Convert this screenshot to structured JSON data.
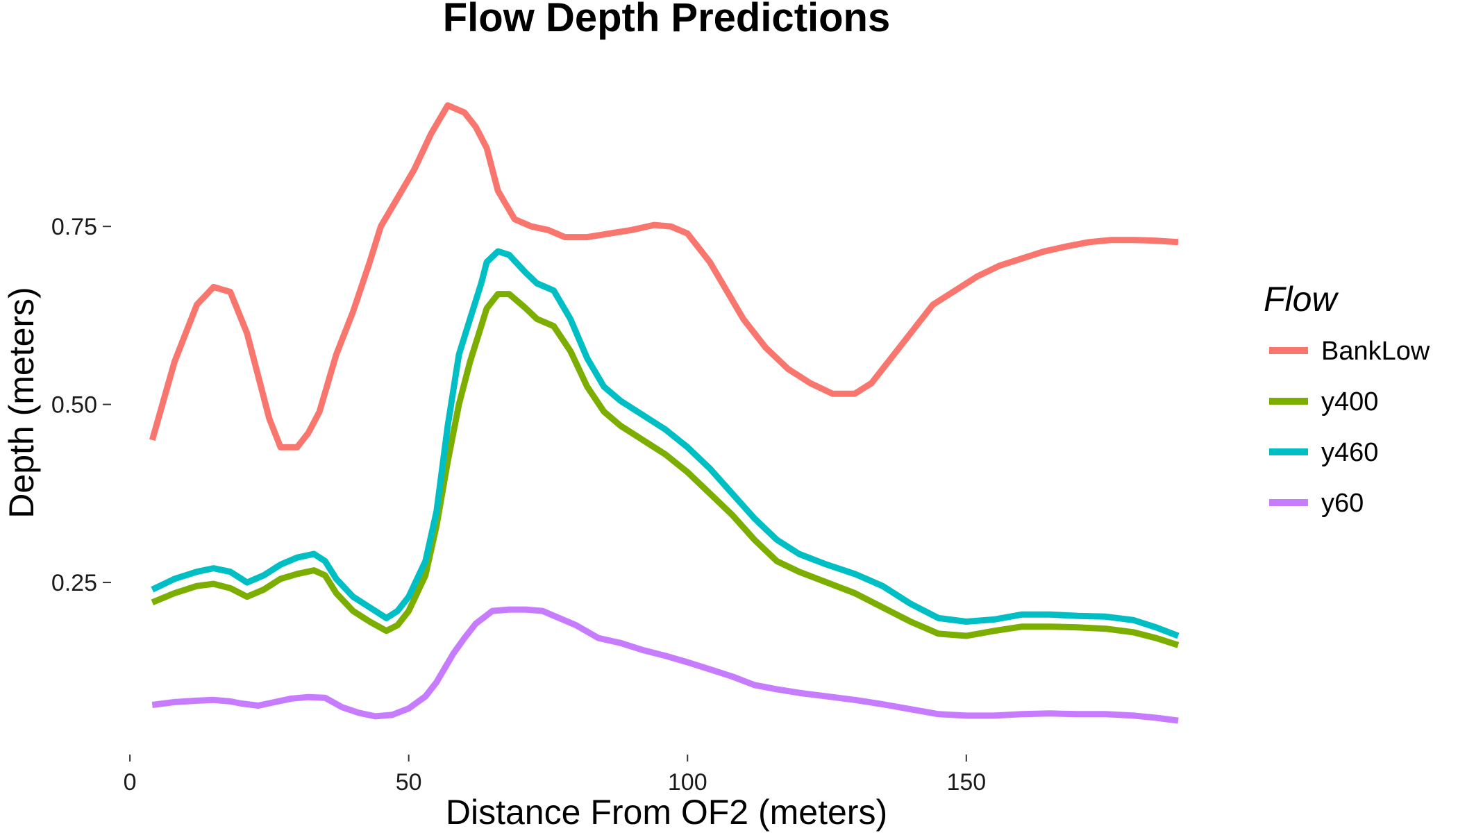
{
  "chart_data": {
    "type": "line",
    "title": "Flow Depth Predictions",
    "xlabel": "Distance From OF2 (meters)",
    "ylabel": "Depth (meters)",
    "xlim": [
      -4,
      188
    ],
    "ylim": [
      0.02,
      0.99
    ],
    "x_ticks": [
      0,
      50,
      100,
      150
    ],
    "x_tick_labels": [
      "0",
      "50",
      "100",
      "150"
    ],
    "y_ticks": [
      0.25,
      0.5,
      0.75
    ],
    "y_tick_labels": [
      "0.25",
      "0.50",
      "0.75"
    ],
    "grid": false,
    "legend": {
      "title": "Flow",
      "position": "right"
    },
    "series": [
      {
        "name": "BankLow",
        "color": "#F8766D",
        "x": [
          4,
          8,
          12,
          15,
          18,
          21,
          25,
          27,
          30,
          32,
          34,
          37,
          40,
          43,
          45,
          48,
          51,
          54,
          57,
          60,
          62,
          64,
          66,
          69,
          72,
          75,
          78,
          82,
          86,
          90,
          94,
          97,
          100,
          104,
          107,
          110,
          114,
          118,
          122,
          126,
          130,
          133,
          136,
          140,
          144,
          148,
          152,
          156,
          160,
          164,
          168,
          172,
          176,
          180,
          184,
          188
        ],
        "y": [
          0.45,
          0.56,
          0.64,
          0.665,
          0.658,
          0.6,
          0.48,
          0.44,
          0.44,
          0.46,
          0.49,
          0.57,
          0.63,
          0.7,
          0.75,
          0.79,
          0.83,
          0.88,
          0.92,
          0.91,
          0.89,
          0.86,
          0.8,
          0.76,
          0.75,
          0.745,
          0.735,
          0.735,
          0.74,
          0.745,
          0.752,
          0.75,
          0.74,
          0.7,
          0.66,
          0.62,
          0.58,
          0.55,
          0.53,
          0.515,
          0.515,
          0.53,
          0.56,
          0.6,
          0.64,
          0.66,
          0.68,
          0.695,
          0.705,
          0.715,
          0.722,
          0.728,
          0.731,
          0.731,
          0.73,
          0.728
        ]
      },
      {
        "name": "y400",
        "color": "#7CAE00",
        "x": [
          4,
          8,
          12,
          15,
          18,
          21,
          24,
          27,
          30,
          33,
          35,
          37,
          40,
          43,
          46,
          48,
          50,
          53,
          55,
          57,
          59,
          61,
          63,
          64,
          66,
          68,
          71,
          73,
          76,
          79,
          82,
          85,
          88,
          92,
          96,
          100,
          104,
          108,
          112,
          116,
          120,
          125,
          130,
          135,
          140,
          145,
          150,
          155,
          160,
          165,
          170,
          175,
          180,
          184,
          188
        ],
        "y": [
          0.222,
          0.235,
          0.245,
          0.248,
          0.242,
          0.23,
          0.24,
          0.255,
          0.262,
          0.267,
          0.26,
          0.235,
          0.21,
          0.195,
          0.182,
          0.19,
          0.21,
          0.26,
          0.33,
          0.42,
          0.5,
          0.56,
          0.61,
          0.635,
          0.655,
          0.655,
          0.635,
          0.62,
          0.61,
          0.575,
          0.525,
          0.49,
          0.47,
          0.45,
          0.43,
          0.405,
          0.375,
          0.345,
          0.31,
          0.28,
          0.265,
          0.25,
          0.235,
          0.215,
          0.195,
          0.178,
          0.175,
          0.182,
          0.188,
          0.188,
          0.187,
          0.185,
          0.18,
          0.172,
          0.162
        ]
      },
      {
        "name": "y460",
        "color": "#00BFC4",
        "x": [
          4,
          8,
          12,
          15,
          18,
          21,
          24,
          27,
          30,
          33,
          35,
          37,
          40,
          43,
          46,
          48,
          50,
          53,
          55,
          57,
          59,
          61,
          63,
          64,
          66,
          68,
          71,
          73,
          76,
          79,
          82,
          85,
          88,
          92,
          96,
          100,
          104,
          108,
          112,
          116,
          120,
          125,
          130,
          135,
          140,
          145,
          150,
          155,
          160,
          165,
          170,
          175,
          180,
          184,
          188
        ],
        "y": [
          0.24,
          0.255,
          0.265,
          0.27,
          0.265,
          0.25,
          0.26,
          0.275,
          0.285,
          0.29,
          0.28,
          0.255,
          0.23,
          0.215,
          0.2,
          0.21,
          0.23,
          0.28,
          0.35,
          0.47,
          0.57,
          0.62,
          0.67,
          0.7,
          0.715,
          0.71,
          0.685,
          0.67,
          0.66,
          0.62,
          0.565,
          0.525,
          0.505,
          0.485,
          0.465,
          0.44,
          0.41,
          0.375,
          0.34,
          0.31,
          0.29,
          0.275,
          0.262,
          0.245,
          0.22,
          0.2,
          0.195,
          0.198,
          0.205,
          0.205,
          0.203,
          0.202,
          0.197,
          0.187,
          0.175
        ]
      },
      {
        "name": "y60",
        "color": "#C77CFF",
        "x": [
          4,
          8,
          12,
          15,
          18,
          20,
          23,
          26,
          29,
          32,
          35,
          38,
          41,
          44,
          47,
          50,
          53,
          55,
          58,
          60,
          62,
          65,
          68,
          71,
          74,
          77,
          80,
          84,
          88,
          92,
          96,
          100,
          104,
          108,
          112,
          116,
          120,
          125,
          130,
          135,
          140,
          145,
          150,
          155,
          160,
          165,
          170,
          175,
          180,
          184,
          188
        ],
        "y": [
          0.078,
          0.082,
          0.084,
          0.085,
          0.083,
          0.08,
          0.077,
          0.082,
          0.087,
          0.089,
          0.088,
          0.075,
          0.067,
          0.062,
          0.064,
          0.073,
          0.09,
          0.11,
          0.15,
          0.172,
          0.192,
          0.21,
          0.212,
          0.212,
          0.21,
          0.2,
          0.19,
          0.172,
          0.165,
          0.155,
          0.147,
          0.138,
          0.128,
          0.118,
          0.106,
          0.1,
          0.095,
          0.09,
          0.085,
          0.079,
          0.072,
          0.065,
          0.063,
          0.063,
          0.065,
          0.066,
          0.065,
          0.065,
          0.063,
          0.06,
          0.056
        ]
      }
    ]
  }
}
